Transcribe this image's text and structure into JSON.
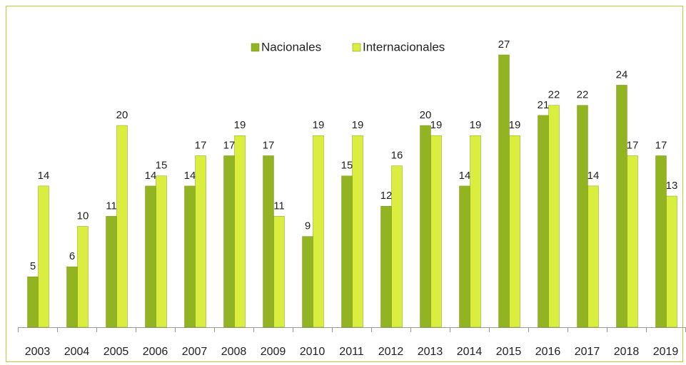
{
  "chart_data": {
    "type": "bar",
    "categories": [
      "2003",
      "2004",
      "2005",
      "2006",
      "2007",
      "2008",
      "2009",
      "2010",
      "2011",
      "2012",
      "2013",
      "2014",
      "2015",
      "2016",
      "2017",
      "2018",
      "2019"
    ],
    "series": [
      {
        "name": "Nacionales",
        "color": "#93b422",
        "values": [
          5,
          6,
          11,
          14,
          14,
          17,
          17,
          9,
          15,
          12,
          20,
          14,
          27,
          21,
          22,
          24,
          17
        ]
      },
      {
        "name": "Internacionales",
        "color": "#d9ee3e",
        "values": [
          14,
          10,
          20,
          15,
          17,
          19,
          11,
          19,
          19,
          16,
          19,
          19,
          19,
          22,
          14,
          17,
          13
        ]
      }
    ],
    "ylim": [
      0,
      30
    ],
    "legend": "top"
  }
}
